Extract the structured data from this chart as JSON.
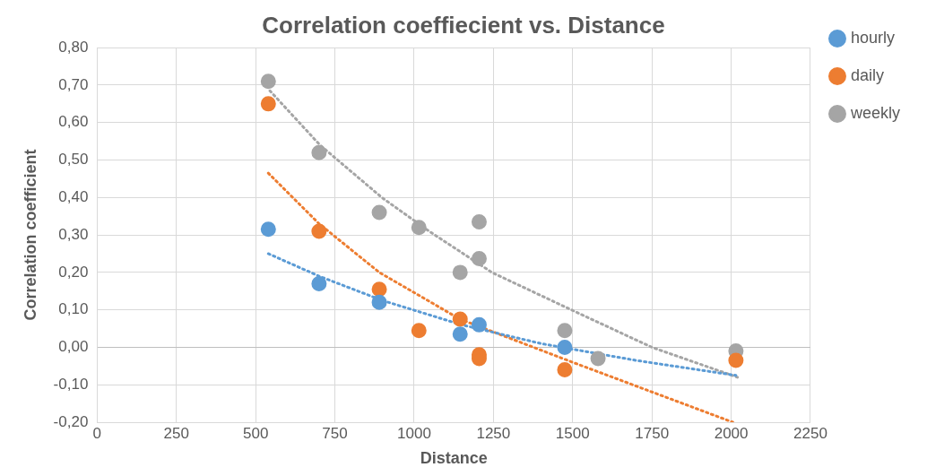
{
  "chart_data": {
    "type": "scatter",
    "title": "Correlation coeffiecient vs. Distance",
    "xlabel": "Distance",
    "ylabel": "Correlation coefficient",
    "xlim": [
      0,
      2250
    ],
    "xticks": [
      0,
      250,
      500,
      750,
      1000,
      1250,
      1500,
      1750,
      2000,
      2250
    ],
    "ylim": [
      -0.2,
      0.8
    ],
    "yticks": [
      {
        "value": -0.2,
        "label": "-0,20"
      },
      {
        "value": -0.1,
        "label": "-0,10"
      },
      {
        "value": 0,
        "label": "0,00"
      },
      {
        "value": 0.1,
        "label": "0,10"
      },
      {
        "value": 0.2,
        "label": "0,20"
      },
      {
        "value": 0.3,
        "label": "0,30"
      },
      {
        "value": 0.4,
        "label": "0,40"
      },
      {
        "value": 0.5,
        "label": "0,50"
      },
      {
        "value": 0.6,
        "label": "0,60"
      },
      {
        "value": 0.7,
        "label": "0,70"
      },
      {
        "value": 0.8,
        "label": "0,80"
      }
    ],
    "grid": true,
    "legend": "right",
    "marker": "circle",
    "series": [
      {
        "name": "hourly",
        "color": "#5b9bd5",
        "x": [
          540,
          700,
          890,
          1145,
          1205,
          1475
        ],
        "values": [
          0.315,
          0.17,
          0.12,
          0.035,
          0.06,
          0.0
        ]
      },
      {
        "name": "daily",
        "color": "#ed7d31",
        "x": [
          540,
          700,
          890,
          1015,
          1145,
          1205,
          1205,
          1475,
          2015
        ],
        "values": [
          0.65,
          0.31,
          0.155,
          0.045,
          0.075,
          -0.02,
          -0.03,
          -0.06,
          -0.035
        ]
      },
      {
        "name": "weekly",
        "color": "#a5a5a5",
        "x": [
          540,
          700,
          890,
          1015,
          1145,
          1205,
          1205,
          1475,
          1580,
          2015
        ],
        "values": [
          0.71,
          0.52,
          0.36,
          0.32,
          0.2,
          0.335,
          0.237,
          0.045,
          -0.03,
          -0.01
        ]
      },
      {
        "type": "line",
        "color": "#5b9bd5",
        "line_style": "dotted",
        "marker": "none",
        "x": [
          540,
          700,
          900,
          1150,
          1400,
          1700,
          2015
        ],
        "values": [
          0.25,
          0.19,
          0.125,
          0.06,
          0.01,
          -0.035,
          -0.075
        ]
      },
      {
        "type": "line",
        "color": "#ed7d31",
        "line_style": "dotted",
        "marker": "none",
        "x": [
          540,
          700,
          890,
          1145,
          1500,
          2005
        ],
        "values": [
          0.465,
          0.33,
          0.2,
          0.075,
          -0.04,
          -0.2
        ]
      },
      {
        "type": "line",
        "color": "#a5a5a5",
        "line_style": "dotted",
        "marker": "none",
        "x": [
          545,
          703,
          898,
          1047,
          1245,
          1496,
          1750,
          2020
        ],
        "values": [
          0.685,
          0.54,
          0.4,
          0.31,
          0.2,
          0.1,
          0,
          -0.08
        ]
      }
    ]
  }
}
